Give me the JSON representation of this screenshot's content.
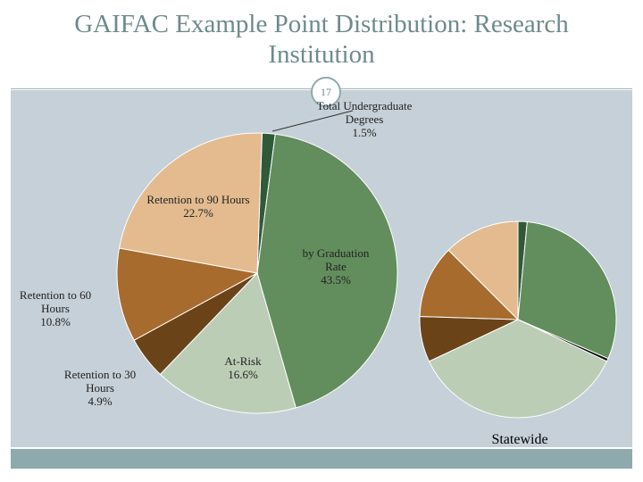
{
  "title": "GAIFAC Example Point Distribution: Research Institution",
  "slide_number": 17,
  "chart_data": [
    {
      "type": "pie",
      "categories": [
        "Total Undergraduate Degrees",
        "by Graduation Rate",
        "At-Risk",
        "Retention to 30 Hours",
        "Retention to 60 Hours",
        "Retention to 90 Hours"
      ],
      "values": [
        1.5,
        43.5,
        16.6,
        4.9,
        10.8,
        22.7
      ],
      "value_labels": [
        "1.5%",
        "43.5%",
        "16.6%",
        "4.9%",
        "10.8%",
        "22.7%"
      ],
      "colors": [
        "#2f5a3a",
        "#628d5d",
        "#bccdb5",
        "#6a4418",
        "#a76b2d",
        "#e3bb8f"
      ]
    },
    {
      "type": "pie",
      "title": "Statewide",
      "categories": [
        null,
        null,
        null,
        null,
        null,
        null,
        null
      ],
      "values": [
        1.5,
        30,
        0.5,
        36,
        7.5,
        12,
        12.5
      ],
      "colors": [
        "#2f5a3a",
        "#628d5d",
        "#111111",
        "#bccdb5",
        "#6a4418",
        "#a76b2d",
        "#e3bb8f"
      ]
    }
  ]
}
